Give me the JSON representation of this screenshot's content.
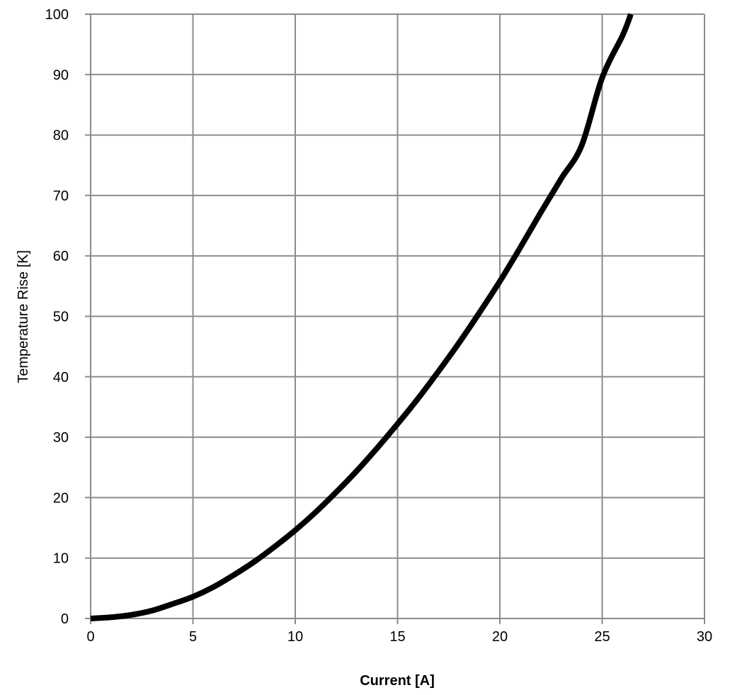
{
  "chart_data": {
    "type": "line",
    "title": "",
    "xlabel": "Current [A]",
    "ylabel": "Temperature Rise [K]",
    "xlim": [
      0,
      30
    ],
    "ylim": [
      0,
      100
    ],
    "x_ticks": [
      0,
      5,
      10,
      15,
      20,
      25,
      30
    ],
    "y_ticks": [
      0,
      10,
      20,
      30,
      40,
      50,
      60,
      70,
      80,
      90,
      100
    ],
    "grid": true,
    "legend": "none",
    "series": [
      {
        "color": "#000000",
        "x": [
          0,
          1,
          2,
          3,
          4,
          5,
          6,
          7,
          8,
          9,
          10,
          11,
          12,
          13,
          14,
          15,
          16,
          17,
          18,
          19,
          20,
          21,
          22,
          23,
          24,
          25,
          26,
          26.4
        ],
        "y": [
          0,
          0.2,
          0.6,
          1.3,
          2.4,
          3.6,
          5.2,
          7.2,
          9.4,
          11.9,
          14.6,
          17.6,
          20.9,
          24.4,
          28.2,
          32.2,
          36.4,
          40.9,
          45.6,
          50.6,
          55.8,
          61.4,
          67.2,
          72.8,
          78.3,
          89.5,
          96.5,
          100
        ]
      }
    ]
  }
}
